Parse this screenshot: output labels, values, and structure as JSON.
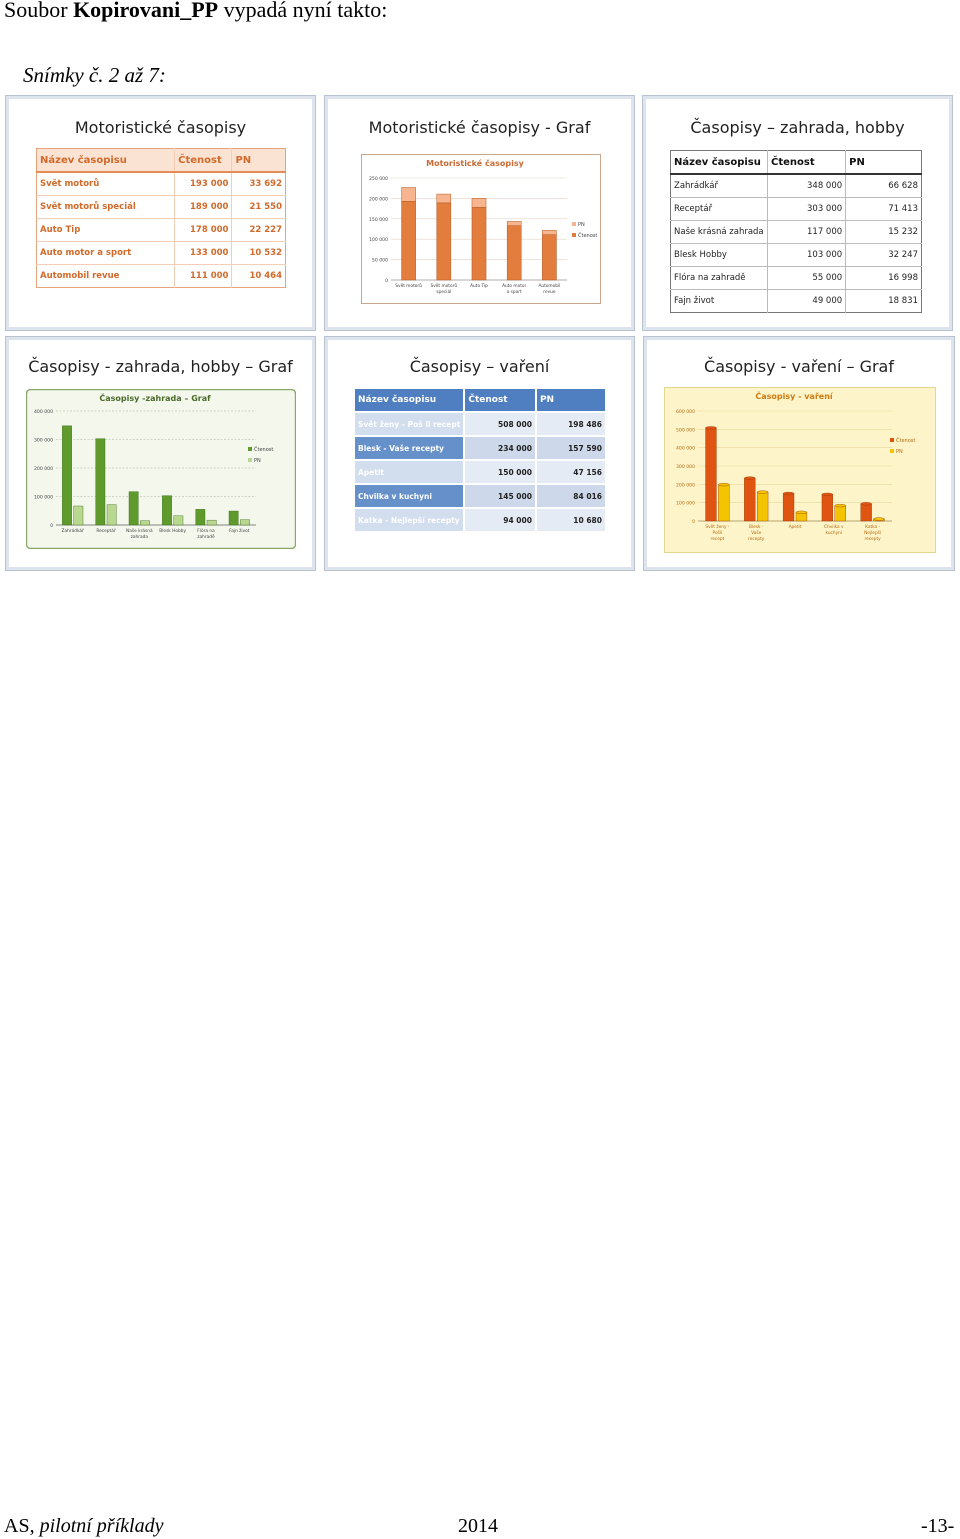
{
  "intro": {
    "prefix": "Soubor ",
    "filename": "Kopirovani_PP",
    "suffix": " vypadá nyní takto:"
  },
  "caption": "Snímky č. 2 až 7:",
  "slides": {
    "s1": {
      "title": "Motoristické časopisy",
      "headers": [
        "Název časopisu",
        "Čtenost",
        "PN"
      ],
      "rows": [
        [
          "Svět motorů",
          "193 000",
          "33 692"
        ],
        [
          "Svět motorů speciál",
          "189 000",
          "21 550"
        ],
        [
          "Auto Tip",
          "178 000",
          "22 227"
        ],
        [
          "Auto motor a sport",
          "133 000",
          "10 532"
        ],
        [
          "Automobil revue",
          "111 000",
          "10 464"
        ]
      ]
    },
    "s2": {
      "title": "Motoristické časopisy - Graf"
    },
    "s3": {
      "title": "Časopisy – zahrada, hobby",
      "headers": [
        "Název časopisu",
        "Čtenost",
        "PN"
      ],
      "rows": [
        [
          "Zahrádkář",
          "348 000",
          "66 628"
        ],
        [
          "Receptář",
          "303 000",
          "71 413"
        ],
        [
          "Naše krásná zahrada",
          "117 000",
          "15 232"
        ],
        [
          "Blesk Hobby",
          "103 000",
          "32 247"
        ],
        [
          "Flóra na zahradě",
          "55 000",
          "16 998"
        ],
        [
          "Fajn život",
          "49 000",
          "18 831"
        ]
      ]
    },
    "s4": {
      "title": "Časopisy - zahrada, hobby – Graf"
    },
    "s5": {
      "title": "Časopisy – vaření",
      "headers": [
        "Název časopisu",
        "Čtenost",
        "PN"
      ],
      "rows": [
        [
          "Svět ženy - Poš li recept",
          "508 000",
          "198 486"
        ],
        [
          "Blesk - Vaše recepty",
          "234 000",
          "157 590"
        ],
        [
          "Apetit",
          "150 000",
          "47 156"
        ],
        [
          "Chvilka v kuchyni",
          "145 000",
          "84 016"
        ],
        [
          "Katka - Nejlepší recepty",
          "94 000",
          "10 680"
        ]
      ]
    },
    "s6": {
      "title": "Časopisy - vaření – Graf"
    }
  },
  "chart_data": [
    {
      "type": "bar",
      "stacked": true,
      "title": "Motoristické časopisy",
      "categories": [
        "Svět motorů",
        "Svět motorů speciál",
        "Auto Tip",
        "Auto motor a sport",
        "Automobil revue"
      ],
      "series": [
        {
          "name": "Čtenost",
          "values": [
            193000,
            189000,
            178000,
            133000,
            111000
          ],
          "color": "#e27d3d"
        },
        {
          "name": "PN",
          "values": [
            33692,
            21550,
            22227,
            10532,
            10464
          ],
          "color": "#f6b58e"
        }
      ],
      "yticks": [
        "0",
        "50 000",
        "100 000",
        "150 000",
        "200 000",
        "250 000"
      ],
      "ylim": [
        0,
        250000
      ],
      "legend": "right",
      "grid": true
    },
    {
      "type": "bar",
      "title": "Časopisy -zahrada – Graf",
      "categories": [
        "Zahrádkář",
        "Receptář",
        "Naše krásná zahrada",
        "Blesk Hobby",
        "Flóra na zahradě",
        "Fajn život"
      ],
      "series": [
        {
          "name": "Čtenost",
          "values": [
            348000,
            303000,
            117000,
            103000,
            55000,
            49000
          ],
          "color": "#5f9a2c"
        },
        {
          "name": "PN",
          "values": [
            66628,
            71413,
            15232,
            32247,
            16998,
            18831
          ],
          "color": "#b9d88f"
        }
      ],
      "yticks": [
        "0",
        "100 000",
        "200 000",
        "300 000",
        "400 000"
      ],
      "ylim": [
        0,
        400000
      ],
      "legend": "right",
      "grid": true
    },
    {
      "type": "bar",
      "title": "Časopisy - vaření",
      "categories": [
        "Svět ženy - Pošli recept",
        "Blesk - Vaše recepty",
        "Apetit",
        "Chvilka v kuchyni",
        "Katka - Nejlepší recepty"
      ],
      "series": [
        {
          "name": "Čtenost",
          "values": [
            508000,
            234000,
            150000,
            145000,
            94000
          ],
          "color": "#e05412"
        },
        {
          "name": "PN",
          "values": [
            198486,
            157590,
            47156,
            84016,
            10680
          ],
          "color": "#f5c400"
        }
      ],
      "yticks": [
        "0",
        "100 000",
        "200 000",
        "300 000",
        "400 000",
        "500 000",
        "600 000"
      ],
      "ylim": [
        0,
        600000
      ],
      "legend": "right",
      "grid": true
    }
  ],
  "footer": {
    "left_prefix": "AS, ",
    "left_italic": "pilotní příklady",
    "center": "2014",
    "right": "-13-"
  }
}
